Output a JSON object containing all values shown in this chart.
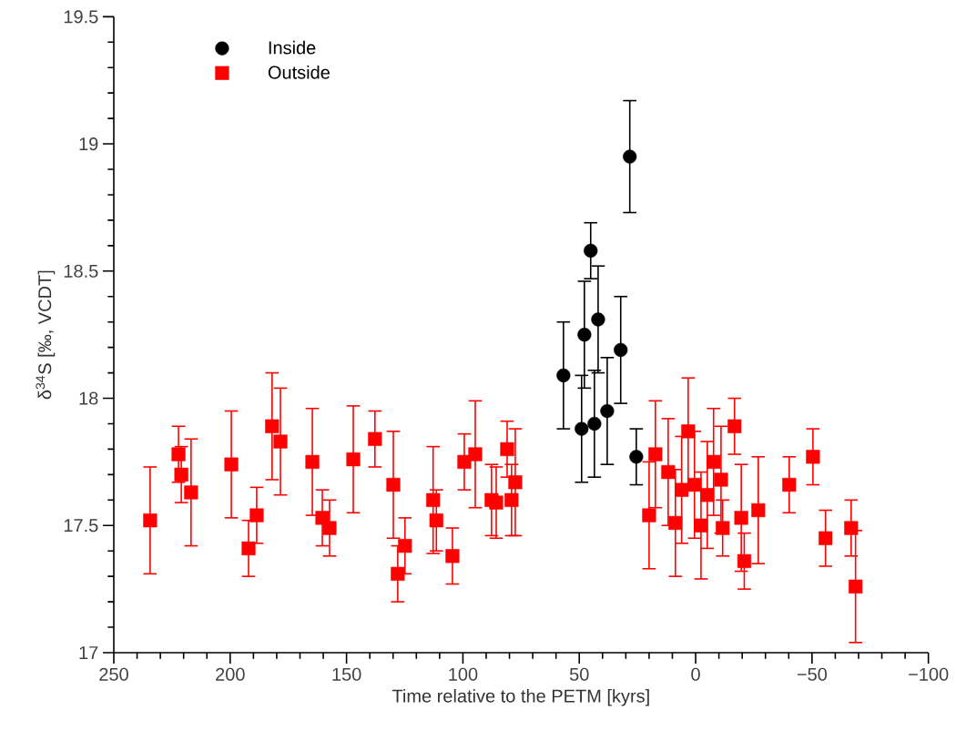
{
  "chart_data": {
    "type": "scatter",
    "xlabel": "Time relative to the PETM [kyrs]",
    "ylabel": "δ$^{34}$S [‰, VCDT]",
    "xlim": [
      250,
      -100
    ],
    "ylim": [
      17,
      19.5
    ],
    "xticks": [
      250,
      200,
      150,
      100,
      50,
      0,
      {
        "value": -50,
        "label": "−50"
      },
      {
        "value": -100,
        "label": "−100"
      },
      {
        "value": 240,
        "label": null
      },
      {
        "value": 230,
        "label": null
      },
      {
        "value": 220,
        "label": null
      },
      {
        "value": 210,
        "label": null
      },
      {
        "value": 190,
        "label": null
      },
      {
        "value": 180,
        "label": null
      },
      {
        "value": 170,
        "label": null
      },
      {
        "value": 160,
        "label": null
      },
      {
        "value": 140,
        "label": null
      },
      {
        "value": 130,
        "label": null
      },
      {
        "value": 120,
        "label": null
      },
      {
        "value": 110,
        "label": null
      },
      {
        "value": 90,
        "label": null
      },
      {
        "value": 80,
        "label": null
      },
      {
        "value": 70,
        "label": null
      },
      {
        "value": 60,
        "label": null
      },
      {
        "value": 40,
        "label": null
      },
      {
        "value": 30,
        "label": null
      },
      {
        "value": 20,
        "label": null
      },
      {
        "value": 10,
        "label": null
      },
      {
        "value": -10,
        "label": null
      },
      {
        "value": -20,
        "label": null
      },
      {
        "value": -30,
        "label": null
      },
      {
        "value": -40,
        "label": null
      },
      {
        "value": -60,
        "label": null
      },
      {
        "value": -70,
        "label": null
      },
      {
        "value": -80,
        "label": null
      },
      {
        "value": -90,
        "label": null
      }
    ],
    "yticks": [
      17,
      17.5,
      18,
      18.5,
      19,
      19.5,
      {
        "value": 17.1,
        "label": null
      },
      {
        "value": 17.2,
        "label": null
      },
      {
        "value": 17.3,
        "label": null
      },
      {
        "value": 17.4,
        "label": null
      },
      {
        "value": 17.6,
        "label": null
      },
      {
        "value": 17.7,
        "label": null
      },
      {
        "value": 17.8,
        "label": null
      },
      {
        "value": 17.9,
        "label": null
      },
      {
        "value": 18.1,
        "label": null
      },
      {
        "value": 18.2,
        "label": null
      },
      {
        "value": 18.3,
        "label": null
      },
      {
        "value": 18.4,
        "label": null
      },
      {
        "value": 18.6,
        "label": null
      },
      {
        "value": 18.7,
        "label": null
      },
      {
        "value": 18.8,
        "label": null
      },
      {
        "value": 18.9,
        "label": null
      },
      {
        "value": 19.1,
        "label": null
      },
      {
        "value": 19.2,
        "label": null
      },
      {
        "value": 19.3,
        "label": null
      },
      {
        "value": 19.4,
        "label": null
      }
    ],
    "grid": false,
    "legend": "top left",
    "series": [
      {
        "name": "Inside",
        "color": "#000000",
        "marker": "circle",
        "x": [
          28.3,
          45.1,
          56.8,
          47.8,
          41.9,
          32.2,
          49.0,
          43.5,
          38.0,
          25.5
        ],
        "values": [
          18.95,
          18.58,
          18.09,
          18.25,
          18.31,
          18.19,
          17.88,
          17.9,
          17.95,
          17.77
        ],
        "errors": [
          0.22,
          0.11,
          0.21,
          0.21,
          0.21,
          0.21,
          0.21,
          0.21,
          0.21,
          0.11
        ]
      },
      {
        "name": "Outside",
        "color": "#ff0000",
        "marker": "square",
        "x": [
          234.4,
          222.2,
          221.0,
          216.8,
          199.5,
          192.1,
          188.6,
          182.0,
          178.4,
          164.7,
          160.4,
          157.3,
          147.1,
          137.8,
          129.9,
          128.0,
          124.9,
          112.8,
          111.4,
          104.5,
          99.4,
          94.7,
          87.7,
          85.7,
          81.0,
          79.1,
          77.5,
          20.0,
          17.3,
          11.8,
          8.7,
          6.0,
          3.2,
          0.5,
          -2.3,
          -5.0,
          -7.7,
          -10.9,
          -11.6,
          -16.7,
          -19.6,
          -20.9,
          -26.9,
          -40.2,
          -50.4,
          -55.8,
          -66.8,
          -68.7
        ],
        "values": [
          17.52,
          17.78,
          17.7,
          17.63,
          17.74,
          17.41,
          17.54,
          17.89,
          17.83,
          17.75,
          17.53,
          17.49,
          17.76,
          17.84,
          17.66,
          17.31,
          17.42,
          17.6,
          17.52,
          17.38,
          17.75,
          17.78,
          17.6,
          17.59,
          17.8,
          17.6,
          17.67,
          17.54,
          17.78,
          17.71,
          17.51,
          17.64,
          17.87,
          17.66,
          17.5,
          17.62,
          17.75,
          17.68,
          17.49,
          17.89,
          17.53,
          17.36,
          17.56,
          17.66,
          17.77,
          17.45,
          17.49,
          17.26
        ],
        "errors": [
          0.21,
          0.11,
          0.11,
          0.21,
          0.21,
          0.11,
          0.11,
          0.21,
          0.21,
          0.21,
          0.11,
          0.11,
          0.21,
          0.11,
          0.21,
          0.11,
          0.11,
          0.21,
          0.12,
          0.11,
          0.11,
          0.21,
          0.14,
          0.14,
          0.11,
          0.14,
          0.21,
          0.21,
          0.21,
          0.21,
          0.21,
          0.21,
          0.21,
          0.21,
          0.21,
          0.21,
          0.21,
          0.21,
          0.11,
          0.11,
          0.21,
          0.11,
          0.21,
          0.11,
          0.11,
          0.11,
          0.11,
          0.22
        ]
      }
    ]
  }
}
